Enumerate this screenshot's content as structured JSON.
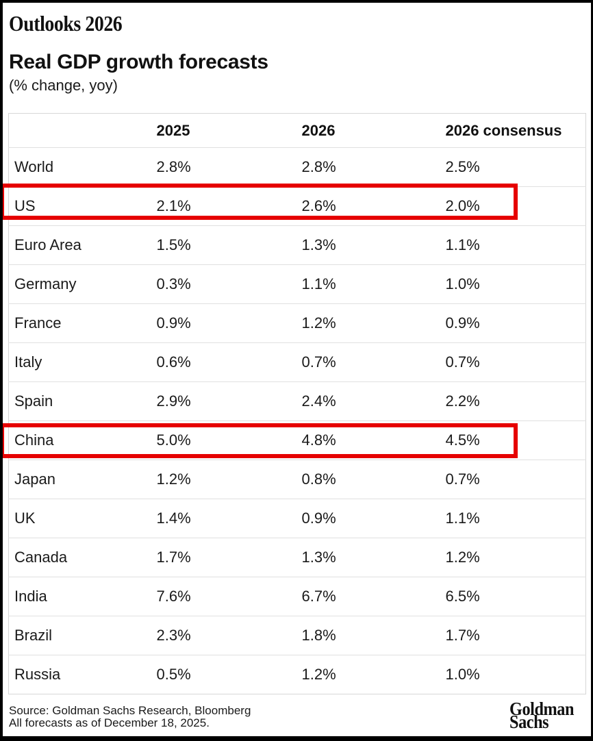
{
  "header": {
    "kicker": "Outlooks 2026",
    "title": "Real GDP growth forecasts",
    "subtitle": "(% change, yoy)"
  },
  "table": {
    "columns": [
      "",
      "2025",
      "2026",
      "2026 consensus"
    ],
    "rows": [
      {
        "region": "World",
        "values": [
          "2.8%",
          "2.8%",
          "2.5%"
        ],
        "highlighted": false
      },
      {
        "region": "US",
        "values": [
          "2.1%",
          "2.6%",
          "2.0%"
        ],
        "highlighted": true
      },
      {
        "region": "Euro Area",
        "values": [
          "1.5%",
          "1.3%",
          "1.1%"
        ],
        "highlighted": false
      },
      {
        "region": "Germany",
        "values": [
          "0.3%",
          "1.1%",
          "1.0%"
        ],
        "highlighted": false
      },
      {
        "region": "France",
        "values": [
          "0.9%",
          "1.2%",
          "0.9%"
        ],
        "highlighted": false
      },
      {
        "region": "Italy",
        "values": [
          "0.6%",
          "0.7%",
          "0.7%"
        ],
        "highlighted": false
      },
      {
        "region": "Spain",
        "values": [
          "2.9%",
          "2.4%",
          "2.2%"
        ],
        "highlighted": false
      },
      {
        "region": "China",
        "values": [
          "5.0%",
          "4.8%",
          "4.5%"
        ],
        "highlighted": true
      },
      {
        "region": "Japan",
        "values": [
          "1.2%",
          "0.8%",
          "0.7%"
        ],
        "highlighted": false
      },
      {
        "region": "UK",
        "values": [
          "1.4%",
          "0.9%",
          "1.1%"
        ],
        "highlighted": false
      },
      {
        "region": "Canada",
        "values": [
          "1.7%",
          "1.3%",
          "1.2%"
        ],
        "highlighted": false
      },
      {
        "region": "India",
        "values": [
          "7.6%",
          "6.7%",
          "6.5%"
        ],
        "highlighted": false
      },
      {
        "region": "Brazil",
        "values": [
          "2.3%",
          "1.8%",
          "1.7%"
        ],
        "highlighted": false
      },
      {
        "region": "Russia",
        "values": [
          "0.5%",
          "1.2%",
          "1.0%"
        ],
        "highlighted": false
      }
    ]
  },
  "chart_data": {
    "type": "table",
    "title": "Real GDP growth forecasts",
    "subtitle": "(% change, yoy)",
    "unit": "% change yoy",
    "categories": [
      "World",
      "US",
      "Euro Area",
      "Germany",
      "France",
      "Italy",
      "Spain",
      "China",
      "Japan",
      "UK",
      "Canada",
      "India",
      "Brazil",
      "Russia"
    ],
    "series": [
      {
        "name": "2025",
        "values": [
          2.8,
          2.1,
          1.5,
          0.3,
          0.9,
          0.6,
          2.9,
          5.0,
          1.2,
          1.4,
          1.7,
          7.6,
          2.3,
          0.5
        ]
      },
      {
        "name": "2026",
        "values": [
          2.8,
          2.6,
          1.3,
          1.1,
          1.2,
          0.7,
          2.4,
          4.8,
          0.8,
          0.9,
          1.3,
          6.7,
          1.8,
          1.2
        ]
      },
      {
        "name": "2026 consensus",
        "values": [
          2.5,
          2.0,
          1.1,
          1.0,
          0.9,
          0.7,
          2.2,
          4.5,
          0.7,
          1.1,
          1.2,
          6.5,
          1.7,
          1.0
        ]
      }
    ],
    "highlighted_categories": [
      "US",
      "China"
    ]
  },
  "footer": {
    "source_line1": "Source: Goldman Sachs Research, Bloomberg",
    "source_line2": "All forecasts as of December 18, 2025.",
    "logo_line1": "Goldman",
    "logo_line2": "Sachs"
  },
  "colors": {
    "highlight_red": "#e60000",
    "table_border": "#d6d6d6",
    "row_divider": "#e0e0e0",
    "frame_black": "#000000",
    "text_dark": "#1a1a1a"
  }
}
